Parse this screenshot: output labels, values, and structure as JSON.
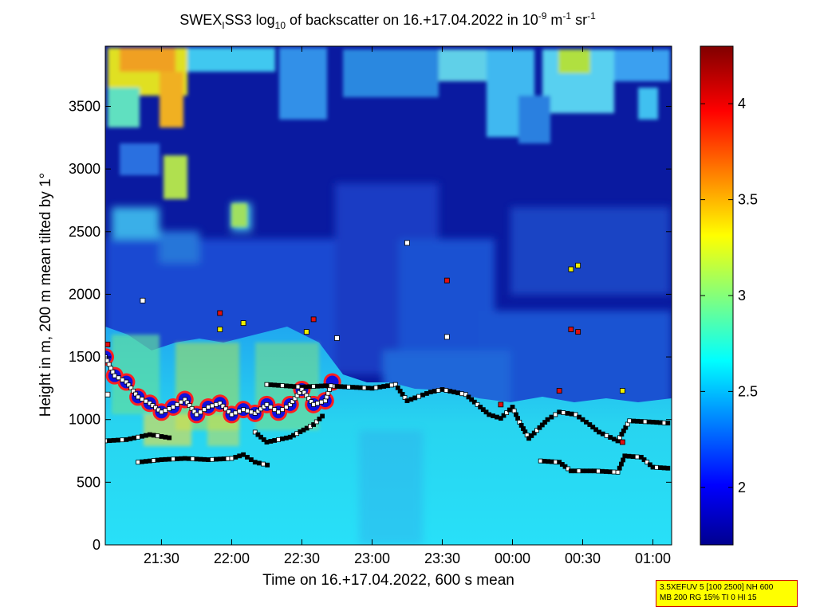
{
  "title": {
    "prefix": "SWEX",
    "sub1": "I",
    "part2": "SS3 log",
    "sub2": "10",
    "part3": " of backscatter on 16.+17.04.2022 in 10",
    "sup1": "-9",
    "part4": " m",
    "sup2": "-1",
    "part5": " sr",
    "sup3": "-1"
  },
  "info_box": {
    "line1": "3.5XEFUV 5 [100 2500] NH 600",
    "line2": "MB 200 RG 15% TI 0 HI 15"
  },
  "colors": {
    "background_low": "#1010a0",
    "cyan": "#20c8f0",
    "marker_white": "#ffffff",
    "marker_black": "#000000",
    "marker_red": "#e01010",
    "marker_yellow": "#f0f000",
    "marker_cyan": "#40e0d0"
  },
  "chart_data": {
    "type": "heatmap",
    "title": "SWEX_I SS3 log10 of backscatter on 16.+17.04.2022 in 10^-9 m^-1 sr^-1",
    "xlabel": "Time on 16.+17.04.2022, 600 s mean",
    "ylabel": "Height in m, 200 m mean tilted by 1°",
    "x_ticks": [
      "21:30",
      "22:00",
      "22:30",
      "23:00",
      "23:30",
      "00:00",
      "00:30",
      "01:00"
    ],
    "y_ticks": [
      "0",
      "500",
      "1000",
      "1500",
      "2000",
      "2500",
      "3000",
      "3500"
    ],
    "xlim": [
      "21:06",
      "01:08"
    ],
    "ylim": [
      0,
      3980
    ],
    "colorbar": {
      "ticks": [
        "2",
        "2.5",
        "3",
        "3.5",
        "4"
      ],
      "range": [
        1.7,
        4.3
      ],
      "colormap": "jet"
    },
    "boundary_series": [
      {
        "name": "",
        "points": [
          [
            "21:06",
            830
          ],
          [
            "21:15",
            840
          ],
          [
            "21:25",
            880
          ],
          [
            "21:35",
            850
          ],
          [
            "22:10",
            900
          ],
          [
            "22:15",
            820
          ],
          [
            "22:25",
            860
          ],
          [
            "22:35",
            960
          ],
          [
            "22:40",
            1050
          ]
        ]
      },
      {
        "name": "",
        "points": [
          [
            "22:15",
            1280
          ],
          [
            "22:30",
            1260
          ],
          [
            "22:40",
            1270
          ],
          [
            "23:00",
            1250
          ],
          [
            "23:10",
            1280
          ],
          [
            "23:15",
            1150
          ],
          [
            "23:25",
            1220
          ],
          [
            "23:30",
            1240
          ],
          [
            "23:40",
            1200
          ],
          [
            "23:50",
            1040
          ],
          [
            "23:55",
            1010
          ],
          [
            "00:00",
            1100
          ],
          [
            "00:03",
            980
          ],
          [
            "00:07",
            850
          ],
          [
            "00:15",
            1000
          ],
          [
            "00:20",
            1060
          ],
          [
            "00:27",
            1040
          ],
          [
            "00:33",
            960
          ],
          [
            "00:37",
            900
          ],
          [
            "00:45",
            830
          ],
          [
            "00:50",
            990
          ],
          [
            "01:00",
            980
          ],
          [
            "01:08",
            970
          ]
        ]
      },
      {
        "name": "",
        "points": [
          [
            "21:20",
            660
          ],
          [
            "21:30",
            680
          ],
          [
            "21:40",
            690
          ],
          [
            "21:50",
            680
          ],
          [
            "22:00",
            690
          ],
          [
            "22:05",
            720
          ],
          [
            "22:10",
            660
          ],
          [
            "22:17",
            630
          ],
          [
            "00:12",
            670
          ],
          [
            "00:20",
            660
          ],
          [
            "00:25",
            590
          ],
          [
            "00:35",
            590
          ],
          [
            "00:45",
            580
          ],
          [
            "00:48",
            710
          ],
          [
            "00:55",
            700
          ],
          [
            "01:00",
            620
          ],
          [
            "01:08",
            610
          ]
        ]
      },
      {
        "name": "",
        "points": [
          [
            "21:06",
            1500
          ],
          [
            "21:10",
            1350
          ],
          [
            "21:15",
            1300
          ],
          [
            "21:20",
            1180
          ],
          [
            "21:25",
            1130
          ],
          [
            "21:30",
            1060
          ],
          [
            "21:35",
            1100
          ],
          [
            "21:40",
            1160
          ],
          [
            "21:45",
            1040
          ],
          [
            "21:50",
            1100
          ],
          [
            "21:55",
            1130
          ],
          [
            "22:00",
            1040
          ],
          [
            "22:05",
            1080
          ],
          [
            "22:10",
            1050
          ],
          [
            "22:15",
            1120
          ],
          [
            "22:20",
            1060
          ],
          [
            "22:25",
            1120
          ],
          [
            "22:30",
            1240
          ],
          [
            "22:35",
            1120
          ],
          [
            "22:40",
            1150
          ],
          [
            "22:43",
            1300
          ]
        ]
      }
    ],
    "scattered_markers": [
      {
        "color": "yellow",
        "points": [
          [
            "00:25",
            2200
          ],
          [
            "00:28",
            2230
          ],
          [
            "00:47",
            1230
          ],
          [
            "21:55",
            1720
          ],
          [
            "22:05",
            1770
          ],
          [
            "22:32",
            1700
          ]
        ]
      },
      {
        "color": "red",
        "points": [
          [
            "23:32",
            2110
          ],
          [
            "00:25",
            1720
          ],
          [
            "00:28",
            1700
          ],
          [
            "00:20",
            1230
          ],
          [
            "23:55",
            1120
          ],
          [
            "21:07",
            1600
          ],
          [
            "21:55",
            1850
          ],
          [
            "22:35",
            1800
          ],
          [
            "00:47",
            820
          ]
        ]
      },
      {
        "color": "white",
        "points": [
          [
            "23:15",
            2410
          ],
          [
            "23:32",
            1660
          ],
          [
            "21:07",
            1200
          ],
          [
            "21:22",
            1950
          ],
          [
            "22:45",
            1650
          ]
        ]
      }
    ]
  }
}
